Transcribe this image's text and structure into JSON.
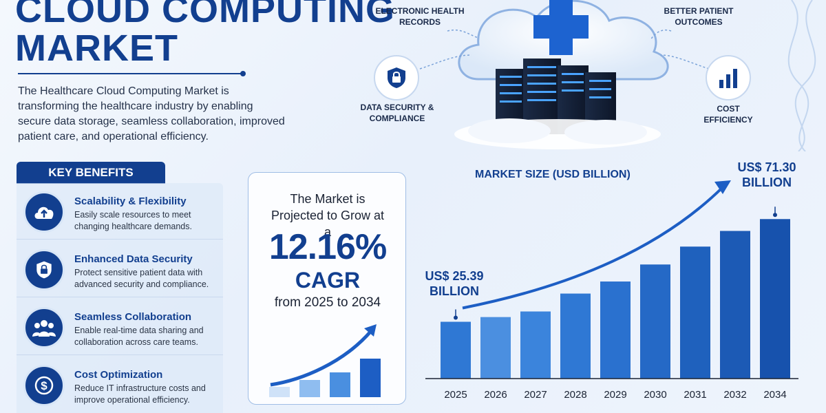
{
  "header": {
    "title_line1": "CLOUD COMPUTING",
    "title_line2": "MARKET",
    "intro": "The Healthcare Cloud Computing Market is transforming the healthcare industry by enabling secure data storage, seamless collaboration, improved patient care, and operational efficiency."
  },
  "features": {
    "ehr": "ELECTRONIC HEALTH RECORDS",
    "outcomes": "BETTER PATIENT OUTCOMES",
    "security": "DATA SECURITY & COMPLIANCE",
    "cost": "COST EFFICIENCY"
  },
  "key_benefits": {
    "heading": "KEY BENEFITS",
    "items": [
      {
        "title": "Scalability & Flexibility",
        "desc": "Easily scale resources to meet changing healthcare demands.",
        "icon": "cloud-upload-icon"
      },
      {
        "title": "Enhanced Data Security",
        "desc": "Protect sensitive patient data with advanced security and compliance.",
        "icon": "shield-lock-icon"
      },
      {
        "title": "Seamless Collaboration",
        "desc": "Enable real-time data sharing and collaboration across care teams.",
        "icon": "team-icon"
      },
      {
        "title": "Cost Optimization",
        "desc": "Reduce IT infrastructure costs and improve operational efficiency.",
        "icon": "dollar-icon"
      }
    ]
  },
  "cagr": {
    "line1": "The Market is Projected to Grow at a",
    "value": "12.16%",
    "label": "CAGR",
    "range": "from 2025 to 2034"
  },
  "colors": {
    "primary": "#123f8f",
    "bar_light": "#5fa0e6",
    "bar_dark": "#1752b3"
  },
  "chart_data": {
    "type": "bar",
    "title": "MARKET SIZE (USD BILLION)",
    "categories": [
      "2025",
      "2026",
      "2027",
      "2028",
      "2029",
      "2030",
      "2031",
      "2032",
      "2034"
    ],
    "values": [
      25.39,
      27.5,
      30.0,
      38.0,
      43.4,
      51.0,
      59.0,
      66.0,
      71.3
    ],
    "ylim": [
      0,
      80
    ],
    "annotations": [
      {
        "category": "2025",
        "text": "US$ 25.39 BILLION"
      },
      {
        "category": "2034",
        "text": "US$ 71.30 BILLION"
      }
    ]
  }
}
